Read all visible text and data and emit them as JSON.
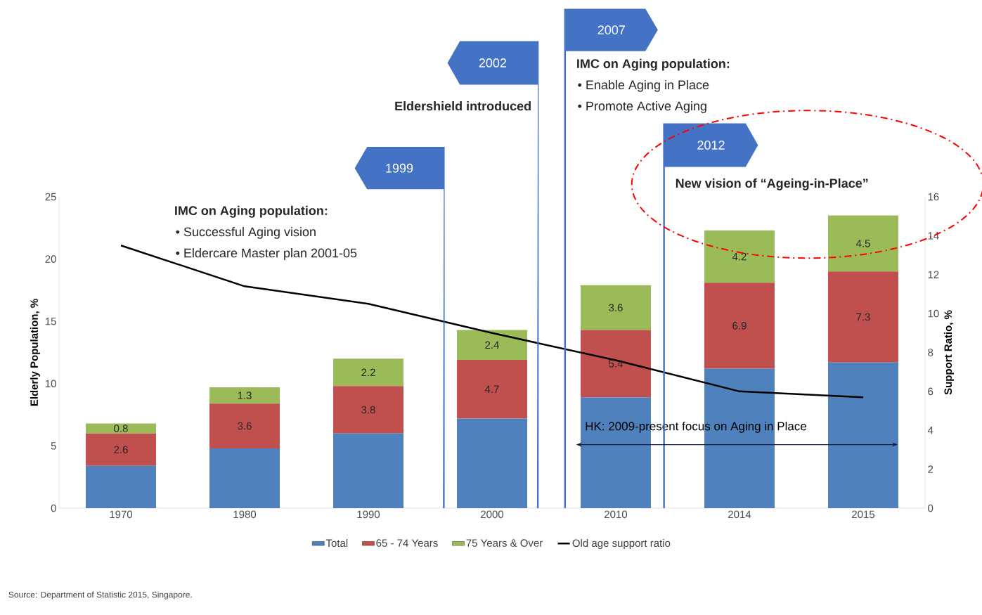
{
  "chart_data": {
    "type": "bar",
    "stacked": true,
    "categories": [
      "1970",
      "1980",
      "1990",
      "2000",
      "2010",
      "2014",
      "2015"
    ],
    "series": [
      {
        "name": "Total",
        "color": "#4f81bd",
        "values": [
          3.4,
          4.8,
          6.0,
          7.2,
          8.9,
          11.2,
          11.7
        ]
      },
      {
        "name": "65 - 74 Years",
        "color": "#c0504d",
        "values": [
          2.6,
          3.6,
          3.8,
          4.7,
          5.4,
          6.9,
          7.3
        ],
        "value_labels": [
          "2.6",
          "3.6",
          "3.8",
          "4.7",
          "5.4",
          "6.9",
          "7.3"
        ]
      },
      {
        "name": "75 Years & Over",
        "color": "#9bbb59",
        "values": [
          0.8,
          1.3,
          2.2,
          2.4,
          3.6,
          4.2,
          4.5
        ],
        "value_labels": [
          "0.8",
          "1.3",
          "2.2",
          "2.4",
          "3.6",
          "4.2",
          "4.5"
        ]
      },
      {
        "name": "Old age support ratio",
        "type": "line",
        "axis": "y2",
        "color": "#000000",
        "values": [
          13.5,
          11.4,
          10.5,
          9.0,
          7.6,
          6.0,
          5.7
        ]
      }
    ],
    "ylabel": "Elderly Population, %",
    "y2label": "Support Ratio, %",
    "ylim": [
      0,
      25
    ],
    "yticks": [
      0,
      5,
      10,
      15,
      20,
      25
    ],
    "y2lim": [
      0,
      16
    ],
    "y2ticks": [
      0,
      2,
      4,
      6,
      8,
      10,
      12,
      14,
      16
    ],
    "legend": "bottom",
    "annotations": [
      "1999",
      "2002",
      "2007",
      "2012",
      "Eldershield introduced",
      "IMC on Aging population:",
      "• Successful Aging vision",
      "• Eldercare Master plan 2001-05",
      "IMC on Aging population:",
      "• Enable Aging in Place",
      "• Promote Active Aging",
      "New vision of “Ageing-in-Place”",
      "HK: 2009-present focus on Aging in Place",
      "Source: Department of Statistic 2015, Singapore."
    ]
  }
}
